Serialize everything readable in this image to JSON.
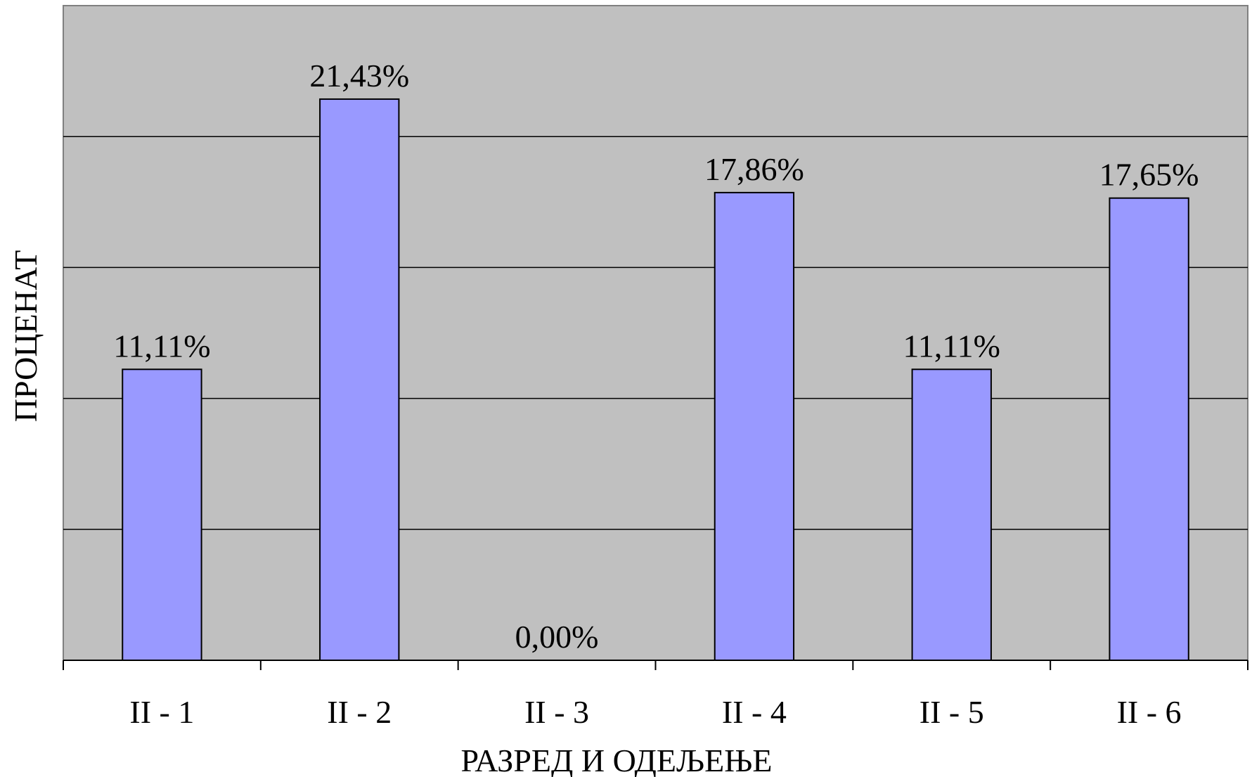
{
  "chart_data": {
    "type": "bar",
    "title": "",
    "xlabel": "РАЗРЕД И ОДЕЉЕЊЕ",
    "ylabel": "ПРОЦЕНАТ",
    "categories": [
      "II - 1",
      "II - 2",
      "II - 3",
      "II - 4",
      "II - 5",
      "II - 6"
    ],
    "values": [
      11.11,
      21.43,
      0.0,
      17.86,
      11.11,
      17.65
    ],
    "data_labels": [
      "11,11%",
      "21,43%",
      "0,00%",
      "17,86%",
      "11,11%",
      "17,65%"
    ],
    "ylim": [
      0,
      25
    ],
    "ytick_step": 5,
    "grid": true,
    "legend": "none",
    "colors": {
      "plot_background": "#c0c0c0",
      "bar_fill": "#9999ff",
      "bar_stroke": "#000000",
      "gridline": "#000000"
    }
  }
}
